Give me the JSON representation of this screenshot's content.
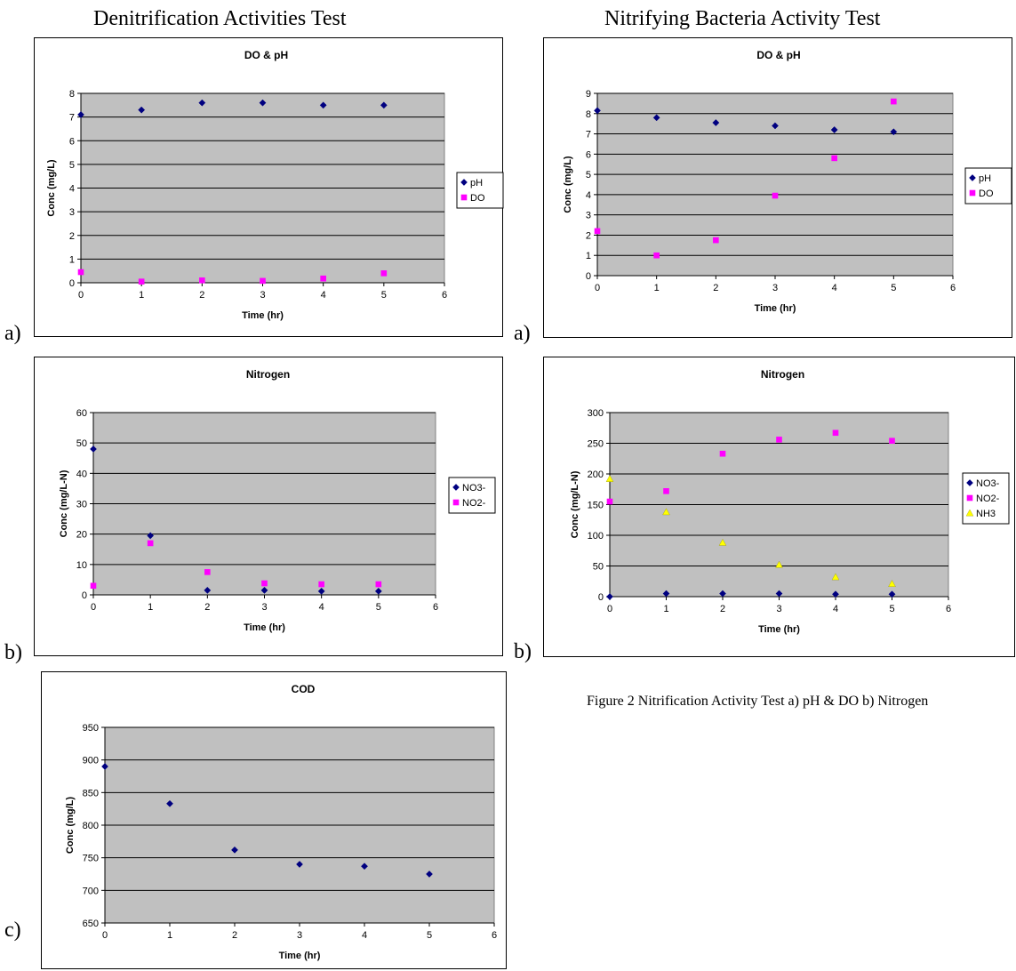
{
  "headings": {
    "left": "Denitrification Activities Test",
    "right": "Nitrifying Bacteria Activity Test"
  },
  "panel_letters": {
    "denit_a": "a)",
    "denit_b": "b)",
    "denit_c": "c)",
    "nitr_a": "a)",
    "nitr_b": "b)"
  },
  "caption": "Figure 2 Nitrification Activity Test a) pH & DO  b) Nitrogen",
  "colors": {
    "plot_bg": "#c0c0c0",
    "grid": "#000000",
    "navy": "#000080",
    "magenta": "#ff00ff",
    "yellow": "#ffff00"
  },
  "chart_data": [
    {
      "id": "denit-do-ph",
      "type": "scatter",
      "title": "DO & pH",
      "xlabel": "Time (hr)",
      "ylabel": "Conc (mg/L)",
      "xlim": [
        0,
        6
      ],
      "ylim": [
        0,
        8
      ],
      "xticks": [
        0,
        1,
        2,
        3,
        4,
        5,
        6
      ],
      "yticks": [
        0,
        1,
        2,
        3,
        4,
        5,
        6,
        7,
        8
      ],
      "grid": true,
      "legend_placement": "right",
      "series": [
        {
          "name": "pH",
          "marker": "diamond",
          "color": "#000080",
          "x": [
            0,
            1,
            2,
            3,
            4,
            5
          ],
          "y": [
            7.1,
            7.3,
            7.6,
            7.6,
            7.5,
            7.5
          ]
        },
        {
          "name": "DO",
          "marker": "square",
          "color": "#ff00ff",
          "x": [
            0,
            1,
            2,
            3,
            4,
            5
          ],
          "y": [
            0.45,
            0.05,
            0.1,
            0.08,
            0.18,
            0.4
          ]
        }
      ]
    },
    {
      "id": "denit-nitrogen",
      "type": "scatter",
      "title": "Nitrogen",
      "xlabel": "Time (hr)",
      "ylabel": "Conc (mg/L-N)",
      "xlim": [
        0,
        6
      ],
      "ylim": [
        0,
        60
      ],
      "xticks": [
        0,
        1,
        2,
        3,
        4,
        5,
        6
      ],
      "yticks": [
        0,
        10,
        20,
        30,
        40,
        50,
        60
      ],
      "grid": true,
      "legend_placement": "right",
      "series": [
        {
          "name": "NO3-",
          "marker": "diamond",
          "color": "#000080",
          "x": [
            0,
            1,
            2,
            3,
            4,
            5
          ],
          "y": [
            48,
            19.5,
            1.5,
            1.5,
            1.2,
            1.2
          ]
        },
        {
          "name": "NO2-",
          "marker": "square",
          "color": "#ff00ff",
          "x": [
            0,
            1,
            2,
            3,
            4,
            5
          ],
          "y": [
            3,
            17,
            7.5,
            3.8,
            3.5,
            3.5
          ]
        }
      ]
    },
    {
      "id": "denit-cod",
      "type": "scatter",
      "title": "COD",
      "xlabel": "Time (hr)",
      "ylabel": "Conc (mg/L)",
      "xlim": [
        0,
        6
      ],
      "ylim": [
        650,
        950
      ],
      "xticks": [
        0,
        1,
        2,
        3,
        4,
        5,
        6
      ],
      "yticks": [
        650,
        700,
        750,
        800,
        850,
        900,
        950
      ],
      "grid": true,
      "legend_placement": "none",
      "series": [
        {
          "marker": "diamond",
          "color": "#000080",
          "x": [
            0,
            1,
            2,
            3,
            4,
            5
          ],
          "y": [
            890,
            833,
            762,
            740,
            737,
            725
          ]
        }
      ]
    },
    {
      "id": "nitr-do-ph",
      "type": "scatter",
      "title": "DO & pH",
      "xlabel": "Time (hr)",
      "ylabel": "Conc (mg/L)",
      "xlim": [
        0,
        6
      ],
      "ylim": [
        0,
        9
      ],
      "xticks": [
        0,
        1,
        2,
        3,
        4,
        5,
        6
      ],
      "yticks": [
        0,
        1,
        2,
        3,
        4,
        5,
        6,
        7,
        8,
        9
      ],
      "grid": true,
      "legend_placement": "right",
      "series": [
        {
          "name": "pH",
          "marker": "diamond",
          "color": "#000080",
          "x": [
            0,
            1,
            2,
            3,
            4,
            5
          ],
          "y": [
            8.15,
            7.8,
            7.55,
            7.4,
            7.2,
            7.1
          ]
        },
        {
          "name": "DO",
          "marker": "square",
          "color": "#ff00ff",
          "x": [
            0,
            1,
            2,
            3,
            4,
            5
          ],
          "y": [
            2.2,
            1.0,
            1.75,
            3.95,
            5.8,
            8.6
          ]
        }
      ]
    },
    {
      "id": "nitr-nitrogen",
      "type": "scatter",
      "title": "Nitrogen",
      "xlabel": "Time (hr)",
      "ylabel": "Conc (mg/L-N)",
      "xlim": [
        0,
        6
      ],
      "ylim": [
        0,
        300
      ],
      "xticks": [
        0,
        1,
        2,
        3,
        4,
        5,
        6
      ],
      "yticks": [
        0,
        50,
        100,
        150,
        200,
        250,
        300
      ],
      "grid": true,
      "legend_placement": "right",
      "series": [
        {
          "name": "NO3-",
          "marker": "diamond",
          "color": "#000080",
          "x": [
            0,
            1,
            2,
            3,
            4,
            5
          ],
          "y": [
            0,
            5,
            5,
            5,
            4,
            4
          ]
        },
        {
          "name": "NO2-",
          "marker": "square",
          "color": "#ff00ff",
          "x": [
            0,
            1,
            2,
            3,
            4,
            5
          ],
          "y": [
            155,
            172,
            233,
            256,
            267,
            254
          ]
        },
        {
          "name": "NH3",
          "marker": "triangle",
          "color": "#ffff00",
          "x": [
            0,
            1,
            2,
            3,
            4,
            5
          ],
          "y": [
            192,
            138,
            88,
            52,
            32,
            21
          ]
        }
      ]
    }
  ]
}
